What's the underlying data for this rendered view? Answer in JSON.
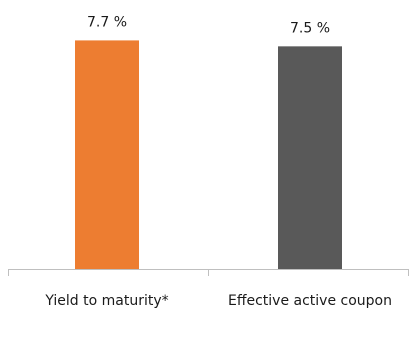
{
  "chart_data": {
    "type": "bar",
    "title": "",
    "xlabel": "",
    "ylabel": "",
    "categories": [
      "Yield to maturity*",
      "Effective active coupon"
    ],
    "values": [
      7.7,
      7.5
    ],
    "value_labels": [
      "7.7 %",
      "7.5 %"
    ],
    "bar_colors": [
      "#ED7D31",
      "#595959"
    ],
    "ylim": [
      0,
      8.0
    ],
    "grid": false,
    "legend": "none"
  }
}
